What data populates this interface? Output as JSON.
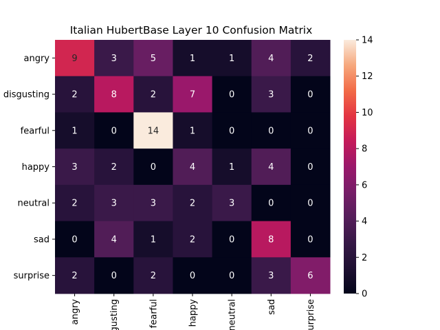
{
  "chart_data": {
    "type": "heatmap",
    "title": "Italian HubertBase Layer 10 Confusion Matrix",
    "xlabel": "",
    "ylabel": "",
    "row_labels": [
      "angry",
      "disgusting",
      "fearful",
      "happy",
      "neutral",
      "sad",
      "surprise"
    ],
    "col_labels": [
      "angry",
      "disgusting",
      "fearful",
      "happy",
      "neutral",
      "sad",
      "surprise"
    ],
    "values": [
      [
        9,
        3,
        5,
        1,
        1,
        4,
        2
      ],
      [
        2,
        8,
        2,
        7,
        0,
        3,
        0
      ],
      [
        1,
        0,
        14,
        1,
        0,
        0,
        0
      ],
      [
        3,
        2,
        0,
        4,
        1,
        4,
        0
      ],
      [
        2,
        3,
        3,
        2,
        3,
        0,
        0
      ],
      [
        0,
        4,
        1,
        2,
        0,
        8,
        0
      ],
      [
        2,
        0,
        2,
        0,
        0,
        3,
        6
      ]
    ],
    "colormap": "rocket",
    "vmin": 0,
    "vmax": 14,
    "colorbar_ticks": [
      0,
      2,
      4,
      6,
      8,
      10,
      12,
      14
    ],
    "annotate": true
  }
}
